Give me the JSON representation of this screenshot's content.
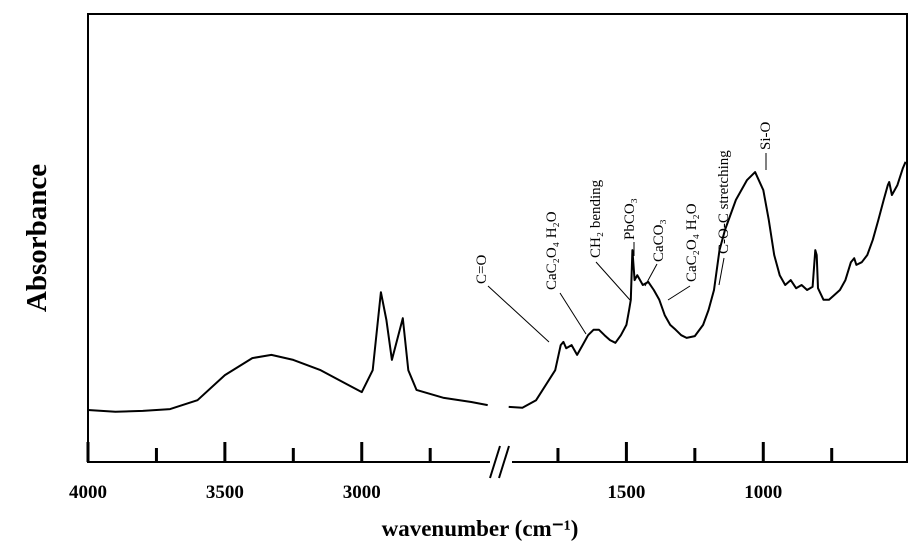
{
  "chart_data": {
    "type": "line",
    "x_label": "wavenumber (cm⁻¹)",
    "y_label": "Absorbance",
    "xlim": [
      4000,
      475
    ],
    "xbreak": [
      2540,
      1930
    ],
    "ylim": [
      0,
      100
    ],
    "xticks": [
      4000,
      3500,
      3000,
      1500,
      1000
    ],
    "xminor_ticks": [
      3750,
      3250,
      2750,
      1750,
      1250,
      750
    ],
    "x": [
      4000,
      3900,
      3800,
      3700,
      3600,
      3500,
      3400,
      3330,
      3250,
      3150,
      3050,
      3000,
      2960,
      2930,
      2910,
      2890,
      2850,
      2830,
      2800,
      2700,
      2600,
      2540,
      2200,
      1930,
      1880,
      1830,
      1760,
      1740,
      1730,
      1720,
      1700,
      1680,
      1660,
      1640,
      1620,
      1600,
      1580,
      1560,
      1540,
      1520,
      1500,
      1490,
      1484,
      1478,
      1470,
      1460,
      1440,
      1420,
      1400,
      1380,
      1360,
      1340,
      1320,
      1300,
      1280,
      1250,
      1220,
      1200,
      1180,
      1160,
      1140,
      1100,
      1060,
      1030,
      1000,
      980,
      960,
      940,
      920,
      900,
      880,
      860,
      840,
      820,
      810,
      805,
      800,
      780,
      760,
      740,
      720,
      700,
      680,
      668,
      660,
      640,
      620,
      600,
      580,
      560,
      545,
      540,
      530,
      510,
      490,
      480
    ],
    "series": [
      {
        "color": "#000000",
        "values": [
          11.6,
          11.2,
          11.4,
          11.8,
          13.8,
          19.4,
          23.2,
          23.9,
          22.8,
          20.5,
          17.2,
          15.6,
          20.5,
          37.9,
          31.7,
          22.8,
          32.1,
          20.5,
          16.1,
          14.3,
          13.4,
          12.7,
          null,
          12.3,
          12.1,
          13.8,
          20.5,
          26.1,
          26.8,
          25.4,
          26.1,
          23.9,
          26.1,
          28.3,
          29.5,
          29.5,
          28.3,
          27.2,
          26.6,
          28.3,
          30.6,
          33.9,
          36.2,
          47.3,
          40.6,
          41.7,
          39.5,
          40.2,
          38.4,
          36.2,
          32.8,
          30.6,
          29.5,
          28.3,
          27.7,
          28.1,
          30.6,
          33.9,
          38.4,
          47.3,
          51.8,
          58.5,
          62.9,
          64.7,
          60.7,
          54.0,
          46.2,
          41.7,
          39.5,
          40.6,
          38.8,
          39.5,
          38.4,
          39.1,
          47.3,
          46.2,
          38.8,
          36.2,
          36.2,
          37.3,
          38.4,
          40.6,
          44.6,
          45.5,
          44.0,
          44.6,
          46.2,
          49.6,
          54.0,
          58.5,
          61.8,
          62.5,
          59.6,
          61.8,
          65.6,
          67.0
        ]
      }
    ],
    "annotations": [
      "C=O",
      "CaC₂O₄ H₂O",
      "CH₂ bending",
      "PbCO₃",
      "CaCO₃",
      "CaC₂O₄ H₂O",
      "C-O-C stretching",
      "Si-O"
    ]
  }
}
